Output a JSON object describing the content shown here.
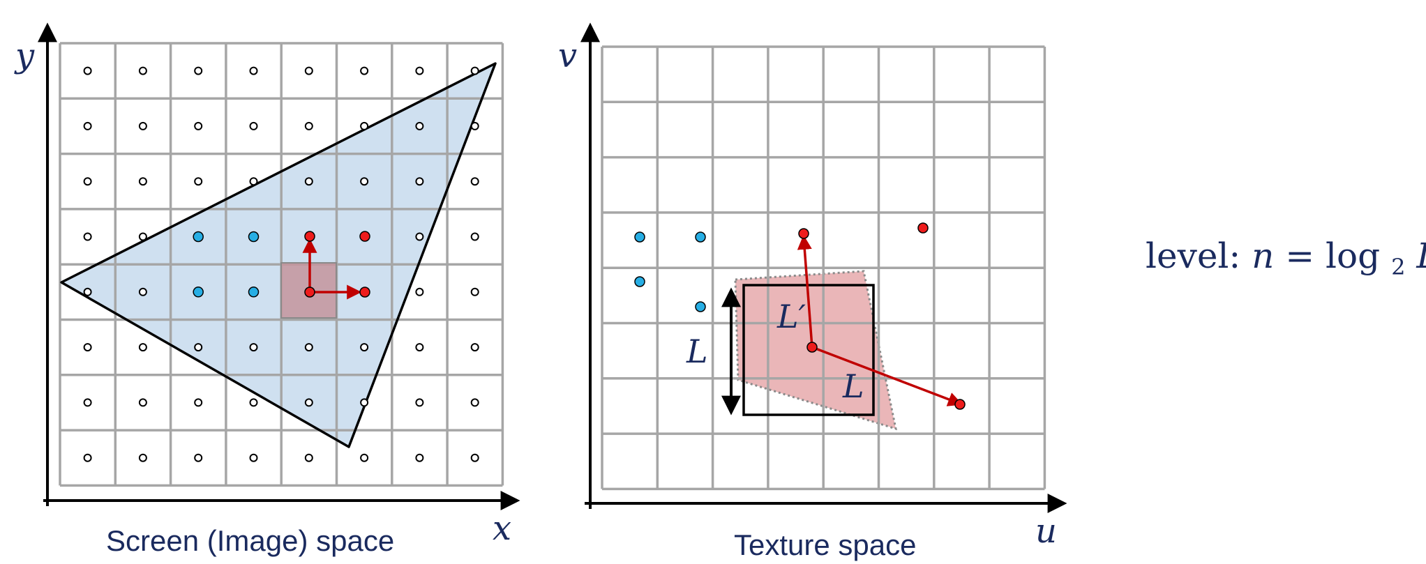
{
  "screen_panel": {
    "caption": "Screen (Image) space",
    "x_axis_label": "x",
    "y_axis_label": "y"
  },
  "texture_panel": {
    "caption": "Texture space",
    "x_axis_label": "u",
    "y_axis_label": "v",
    "footprint_label_prime": "L′",
    "footprint_label_bottom": "L",
    "size_arrow_label": "L"
  },
  "formula": {
    "prefix": "level: ",
    "lhs": "n",
    "eq": " = log",
    "subscript": "2",
    "rhs": " L"
  },
  "colors": {
    "text": "#1a2a5e",
    "grid": "#a6a6a6",
    "triangle_fill": "#cfe0f0",
    "footprint_fill": "#e8aeb0",
    "red": "#c00000",
    "red_dot": "#ee1c1c",
    "blue_dot": "#27aee4"
  }
}
